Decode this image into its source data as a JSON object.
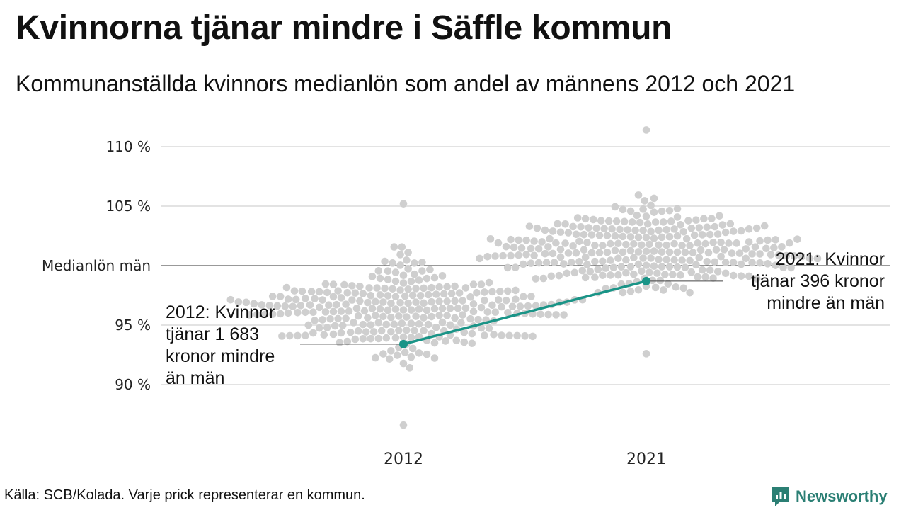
{
  "title": "Kvinnorna tjänar mindre i Säffle kommun",
  "subtitle": "Kommunanställda kvinnors medianlön som andel av männens 2012 och 2021",
  "source": "Källa: SCB/Kolada. Varje prick representerar en kommun.",
  "logo": {
    "text": "Newsworthy",
    "icon": "newsworthy-logo-icon",
    "color": "#2b7f74"
  },
  "colors": {
    "dots": "#cfcfcf",
    "highlight": "#1a9487",
    "grid": "#e3e3e3",
    "reference": "#333333"
  },
  "chart_data": {
    "type": "scatter",
    "subtype": "beeswarm-with-highlight-line",
    "categories": [
      "2012",
      "2021"
    ],
    "ylim": [
      86,
      111.5
    ],
    "yticks": [
      {
        "value": 110,
        "label": "110 %"
      },
      {
        "value": 105,
        "label": "105 %"
      },
      {
        "value": 100,
        "label": "Medianlön män"
      },
      {
        "value": 95,
        "label": "95 %"
      },
      {
        "value": 90,
        "label": "90 %"
      }
    ],
    "reference_line": {
      "value": 100,
      "label": "Medianlön män"
    },
    "grid": true,
    "swarm_2012": {
      "center": 96.3,
      "min": 86.6,
      "max": 105.2,
      "peaks": [
        [
          105.2,
          101,
          98.4,
          97.6,
          96.3,
          95.6,
          93.8,
          91.5,
          89.0,
          86.6
        ]
      ]
    },
    "swarm_2021": {
      "center": 101.2,
      "min": 92.6,
      "max": 111.4,
      "peaks": [
        [
          111.4,
          109.8,
          107.0,
          104.8,
          102.8,
          100.3,
          98.6,
          96.6,
          94.3,
          92.6
        ]
      ]
    },
    "highlight_series": {
      "x": [
        "2012",
        "2021"
      ],
      "values": [
        93.4,
        98.7
      ]
    },
    "annotations": [
      {
        "category": "2012",
        "value": 93.4,
        "lines": [
          "2012: Kvinnor",
          "tjänar 1 683",
          "kronor mindre",
          "än män"
        ]
      },
      {
        "category": "2021",
        "value": 98.7,
        "lines": [
          "2021: Kvinnor",
          "tjänar 396 kronor",
          "mindre än män"
        ]
      }
    ]
  }
}
